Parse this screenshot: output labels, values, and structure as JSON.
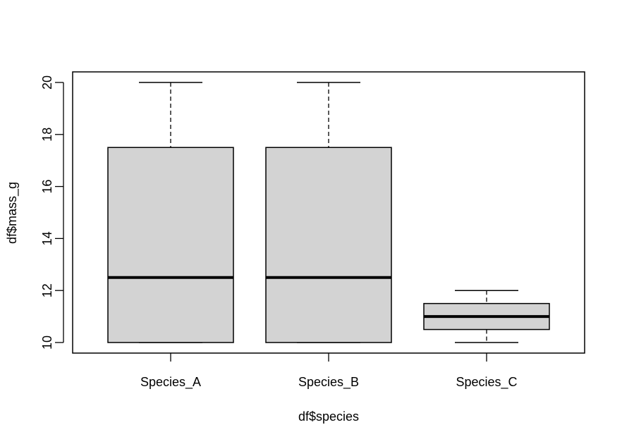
{
  "chart_data": {
    "type": "boxplot",
    "title": "",
    "xlabel": "df$species",
    "ylabel": "df$mass_g",
    "ylim": [
      9.6,
      20.4
    ],
    "yticks": [
      10,
      12,
      14,
      16,
      18,
      20
    ],
    "categories": [
      "Species_A",
      "Species_B",
      "Species_C"
    ],
    "boxes": [
      {
        "name": "Species_A",
        "whisker_low": 10,
        "q1": 10,
        "median": 12.5,
        "q3": 17.5,
        "whisker_high": 20
      },
      {
        "name": "Species_B",
        "whisker_low": 10,
        "q1": 10,
        "median": 12.5,
        "q3": 17.5,
        "whisker_high": 20
      },
      {
        "name": "Species_C",
        "whisker_low": 10,
        "q1": 10.5,
        "median": 11,
        "q3": 11.5,
        "whisker_high": 12
      }
    ],
    "box_fill": "#d3d3d3",
    "grid": false,
    "legend": null
  },
  "labels": {
    "xlabel": "df$species",
    "ylabel": "df$mass_g",
    "yticks": [
      "10",
      "12",
      "14",
      "16",
      "18",
      "20"
    ],
    "categories": [
      "Species_A",
      "Species_B",
      "Species_C"
    ]
  }
}
